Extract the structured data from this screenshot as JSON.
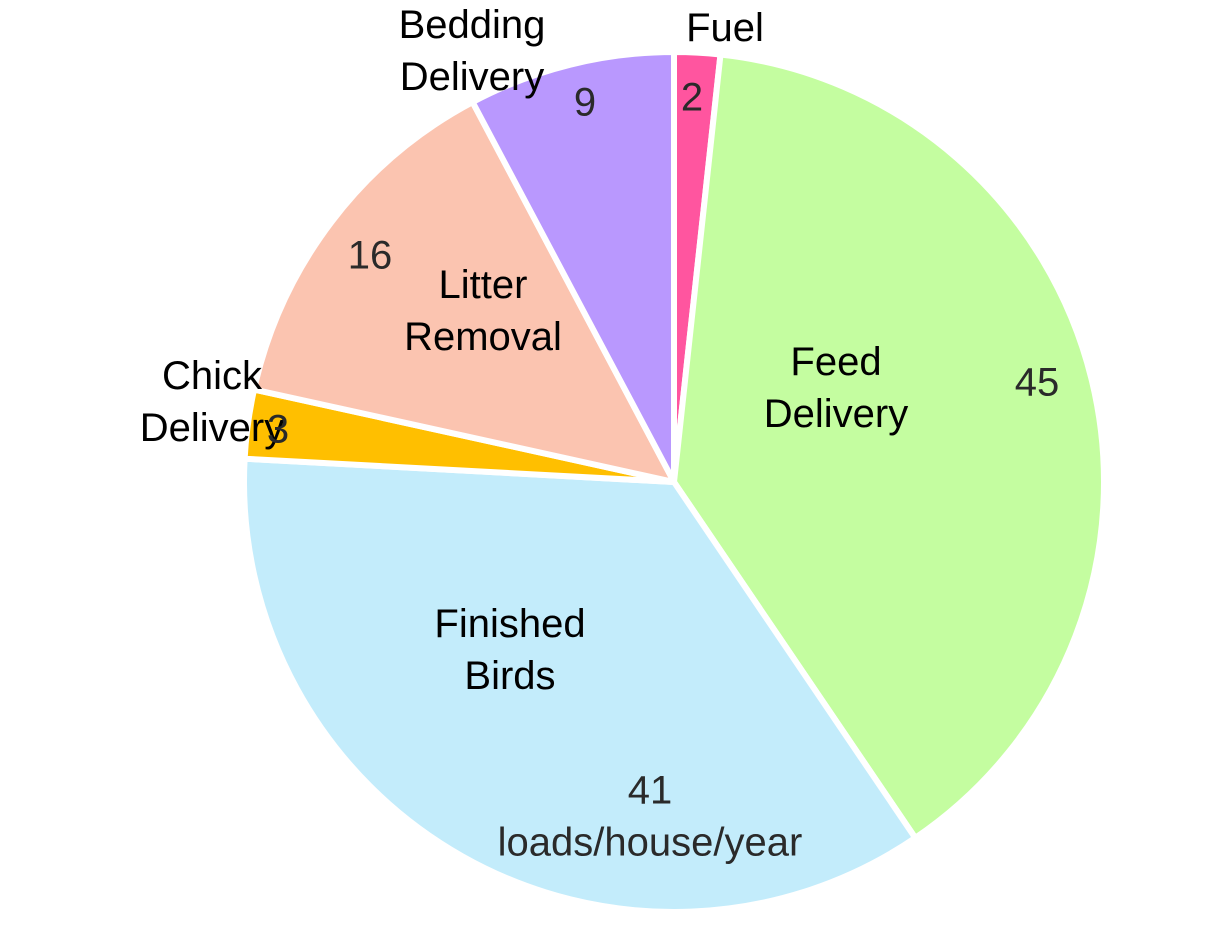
{
  "chart_data": {
    "type": "pie",
    "categories": [
      "Fuel",
      "Feed Delivery",
      "Finished Birds",
      "Chick Delivery",
      "Litter Removal",
      "Bedding Delivery"
    ],
    "values": [
      2,
      45,
      41,
      3,
      16,
      9
    ],
    "colors": [
      "#ff559f",
      "#c4fda0",
      "#c3ecfb",
      "#ffbf00",
      "#fbc4b0",
      "#b998fe"
    ],
    "annotation": "loads/house/year"
  }
}
